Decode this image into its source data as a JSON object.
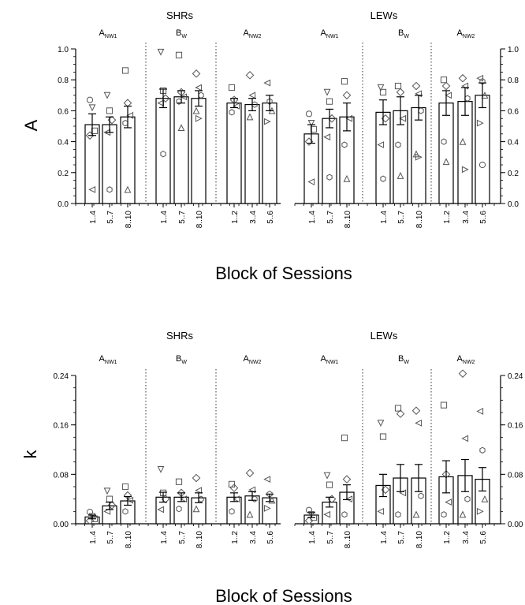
{
  "panel_top": {
    "y_axis_label": "A",
    "x_axis_title": "Block of Sessions",
    "group_titles": [
      "SHRs",
      "LEWs"
    ],
    "phase_labels": [
      {
        "main": "A",
        "sub": "NW1"
      },
      {
        "main": "B",
        "sub": "W"
      },
      {
        "main": "A",
        "sub": "NW2"
      },
      {
        "main": "A",
        "sub": "NW1"
      },
      {
        "main": "B",
        "sub": "W"
      },
      {
        "main": "A",
        "sub": "NW2"
      }
    ],
    "ticks_left": [
      "0.0",
      "0.2",
      "0.4",
      "0.6",
      "0.8",
      "1.0"
    ],
    "ticks_right": [
      "0.0",
      "0.2",
      "0.4",
      "0.6",
      "0.8",
      "1.0"
    ]
  },
  "panel_bottom": {
    "y_axis_label": "k",
    "x_axis_title": "Block of Sessions",
    "group_titles": [
      "SHRs",
      "LEWs"
    ],
    "phase_labels": [
      {
        "main": "A",
        "sub": "NW1"
      },
      {
        "main": "B",
        "sub": "W"
      },
      {
        "main": "A",
        "sub": "NW2"
      },
      {
        "main": "A",
        "sub": "NW1"
      },
      {
        "main": "B",
        "sub": "W"
      },
      {
        "main": "A",
        "sub": "NW2"
      }
    ],
    "ticks_left": [
      "0.00",
      "0.08",
      "0.16",
      "0.24"
    ],
    "ticks_right": [
      "0.00",
      "0.08",
      "0.16",
      "0.24"
    ]
  },
  "chart_data": [
    {
      "type": "bar",
      "ylabel": "A",
      "xlabel": "Block of Sessions",
      "ylim": [
        0,
        1.0
      ],
      "groups": [
        {
          "title": "SHRs",
          "phases": [
            {
              "label": "ANW1",
              "categories": [
                "1..4",
                "5..7",
                "8..10"
              ],
              "values": [
                0.51,
                0.51,
                0.56
              ],
              "errors": [
                0.07,
                0.05,
                0.07
              ],
              "points": [
                [
                  0.67,
                  0.62,
                  0.47,
                  0.44,
                  0.09
                ],
                [
                  0.7,
                  0.6,
                  0.54,
                  0.46,
                  0.09
                ],
                [
                  0.86,
                  0.65,
                  0.57,
                  0.52,
                  0.09
                ]
              ]
            },
            {
              "label": "BW",
              "categories": [
                "1..4",
                "5..7",
                "8..10"
              ],
              "values": [
                0.68,
                0.69,
                0.68
              ],
              "errors": [
                0.06,
                0.04,
                0.05
              ],
              "points": [
                [
                  0.98,
                  0.73,
                  0.68,
                  0.65,
                  0.32
                ],
                [
                  0.96,
                  0.72,
                  0.69,
                  0.66,
                  0.49
                ],
                [
                  0.84,
                  0.75,
                  0.7,
                  0.6,
                  0.55
                ]
              ]
            },
            {
              "label": "ANW2",
              "categories": [
                "1..2",
                "3..4",
                "5..6"
              ],
              "values": [
                0.65,
                0.64,
                0.65
              ],
              "errors": [
                0.03,
                0.04,
                0.05
              ],
              "points": [
                [
                  0.75,
                  0.67,
                  0.63,
                  0.59
                ],
                [
                  0.83,
                  0.7,
                  0.64,
                  0.56
                ],
                [
                  0.78,
                  0.66,
                  0.6,
                  0.53
                ]
              ]
            }
          ]
        },
        {
          "title": "LEWs",
          "phases": [
            {
              "label": "ANW1",
              "categories": [
                "1..4",
                "5..7",
                "8..10"
              ],
              "values": [
                0.45,
                0.55,
                0.56
              ],
              "errors": [
                0.06,
                0.06,
                0.09
              ],
              "points": [
                [
                  0.58,
                  0.52,
                  0.48,
                  0.4,
                  0.14
                ],
                [
                  0.72,
                  0.66,
                  0.55,
                  0.43,
                  0.17
                ],
                [
                  0.79,
                  0.7,
                  0.55,
                  0.38,
                  0.16
                ]
              ]
            },
            {
              "label": "BW",
              "categories": [
                "1..4",
                "5..7",
                "8..10"
              ],
              "values": [
                0.59,
                0.6,
                0.62
              ],
              "errors": [
                0.08,
                0.09,
                0.08
              ],
              "points": [
                [
                  0.75,
                  0.72,
                  0.55,
                  0.38,
                  0.16
                ],
                [
                  0.76,
                  0.72,
                  0.55,
                  0.38,
                  0.18
                ],
                [
                  0.76,
                  0.71,
                  0.6,
                  0.32,
                  0.3
                ]
              ]
            },
            {
              "label": "ANW2",
              "categories": [
                "1..2",
                "3..4",
                "5..6"
              ],
              "values": [
                0.65,
                0.66,
                0.7
              ],
              "errors": [
                0.08,
                0.09,
                0.08
              ],
              "points": [
                [
                  0.8,
                  0.76,
                  0.7,
                  0.4,
                  0.27
                ],
                [
                  0.81,
                  0.76,
                  0.68,
                  0.4,
                  0.22
                ],
                [
                  0.81,
                  0.79,
                  0.7,
                  0.52,
                  0.25
                ]
              ]
            }
          ]
        }
      ]
    },
    {
      "type": "bar",
      "ylabel": "k",
      "xlabel": "Block of Sessions",
      "ylim": [
        0,
        0.24
      ],
      "groups": [
        {
          "title": "SHRs",
          "phases": [
            {
              "label": "ANW1",
              "categories": [
                "1..4",
                "5..7",
                "8..10"
              ],
              "values": [
                0.011,
                0.029,
                0.037
              ],
              "errors": [
                0.003,
                0.006,
                0.007
              ],
              "points": [
                [
                  0.019,
                  0.012,
                  0.008,
                  0.005
                ],
                [
                  0.053,
                  0.04,
                  0.03,
                  0.02
                ],
                [
                  0.06,
                  0.046,
                  0.038,
                  0.02
                ]
              ]
            },
            {
              "label": "BW",
              "categories": [
                "1..4",
                "5..7",
                "8..10"
              ],
              "values": [
                0.043,
                0.043,
                0.042
              ],
              "errors": [
                0.008,
                0.007,
                0.008
              ],
              "points": [
                [
                  0.088,
                  0.05,
                  0.04,
                  0.023
                ],
                [
                  0.068,
                  0.05,
                  0.04,
                  0.024
                ],
                [
                  0.074,
                  0.054,
                  0.04,
                  0.024
                ]
              ]
            },
            {
              "label": "ANW2",
              "categories": [
                "1..2",
                "3..4",
                "5..6"
              ],
              "values": [
                0.043,
                0.045,
                0.042
              ],
              "errors": [
                0.007,
                0.007,
                0.006
              ],
              "points": [
                [
                  0.064,
                  0.058,
                  0.04,
                  0.02
                ],
                [
                  0.082,
                  0.055,
                  0.04,
                  0.015
                ],
                [
                  0.072,
                  0.048,
                  0.038,
                  0.025
                ]
              ]
            }
          ]
        },
        {
          "title": "LEWs",
          "phases": [
            {
              "label": "ANW1",
              "categories": [
                "1..4",
                "5..7",
                "8..10"
              ],
              "values": [
                0.014,
                0.035,
                0.051
              ],
              "errors": [
                0.004,
                0.008,
                0.012
              ],
              "points": [
                [
                  0.022,
                  0.015,
                  0.01,
                  0.005
                ],
                [
                  0.078,
                  0.063,
                  0.04,
                  0.015
                ],
                [
                  0.139,
                  0.072,
                  0.04,
                  0.015
                ]
              ]
            },
            {
              "label": "BW",
              "categories": [
                "1..4",
                "5..7",
                "8..10"
              ],
              "values": [
                0.062,
                0.074,
                0.074
              ],
              "errors": [
                0.018,
                0.022,
                0.022
              ],
              "points": [
                [
                  0.163,
                  0.141,
                  0.055,
                  0.02
                ],
                [
                  0.187,
                  0.178,
                  0.05,
                  0.015
                ],
                [
                  0.183,
                  0.163,
                  0.045,
                  0.015
                ]
              ]
            },
            {
              "label": "ANW2",
              "categories": [
                "1..2",
                "3..4",
                "5..6"
              ],
              "values": [
                0.076,
                0.078,
                0.072
              ],
              "errors": [
                0.026,
                0.026,
                0.019
              ],
              "points": [
                [
                  0.192,
                  0.08,
                  0.035,
                  0.015
                ],
                [
                  0.243,
                  0.138,
                  0.04,
                  0.015
                ],
                [
                  0.182,
                  0.119,
                  0.04,
                  0.02
                ]
              ]
            }
          ]
        }
      ]
    }
  ]
}
